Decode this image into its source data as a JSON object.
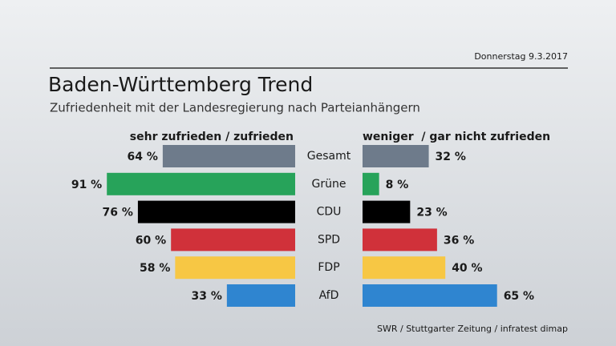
{
  "date": "Donnerstag 9.3.2017",
  "source": "SWR / Stuttgarter Zeitung / infratest dimap",
  "chart_data": {
    "type": "bar",
    "title": "Baden-Württemberg Trend",
    "subtitle": "Zufriedenheit mit der Landesregierung nach Parteianhängern",
    "categories": [
      "Gesamt",
      "Grüne",
      "CDU",
      "SPD",
      "FDP",
      "AfD"
    ],
    "colors": [
      "#6e7b8b",
      "#27a35a",
      "#000000",
      "#d0313a",
      "#f7c744",
      "#2f85d0"
    ],
    "series": [
      {
        "name": "sehr zufrieden / zufrieden",
        "values": [
          64,
          91,
          76,
          60,
          58,
          33
        ],
        "value_labels": [
          "64 %",
          "91 %",
          "76 %",
          "60 %",
          "58 %",
          "33 %"
        ]
      },
      {
        "name": "weniger  / gar nicht zufrieden",
        "values": [
          32,
          8,
          23,
          36,
          40,
          65
        ],
        "value_labels": [
          "32 %",
          "8 %",
          "23 %",
          "36 %",
          "40 %",
          "65 %"
        ]
      }
    ]
  }
}
